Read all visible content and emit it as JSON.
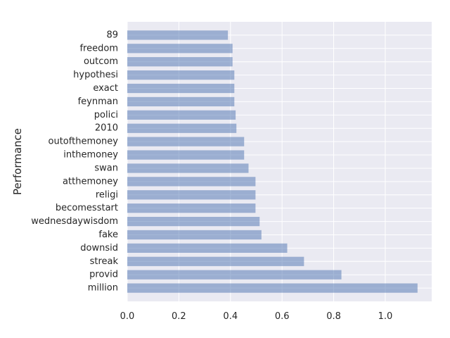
{
  "chart_data": {
    "type": "bar",
    "orientation": "horizontal",
    "categories": [
      "million",
      "provid",
      "streak",
      "downsid",
      "fake",
      "wednesdaywisdom",
      "becomesstart",
      "religi",
      "atthemoney",
      "swan",
      "inthemoney",
      "outofthemoney",
      "2010",
      "polici",
      "feynman",
      "exact",
      "hypothesi",
      "outcom",
      "freedom",
      "89"
    ],
    "values": [
      1.125,
      0.83,
      0.685,
      0.62,
      0.52,
      0.513,
      0.497,
      0.497,
      0.497,
      0.47,
      0.453,
      0.453,
      0.423,
      0.42,
      0.415,
      0.415,
      0.415,
      0.408,
      0.408,
      0.39
    ],
    "title": "",
    "xlabel": "",
    "ylabel": "Performance",
    "xlim": [
      0,
      1.18
    ],
    "xticks": [
      "0.0",
      "0.2",
      "0.4",
      "0.6",
      "0.8",
      "1.0"
    ],
    "grid": true,
    "legend": "none",
    "colors": {
      "bar": "#4c72b0",
      "background": "#eaeaf2",
      "grid": "#ffffff"
    }
  }
}
